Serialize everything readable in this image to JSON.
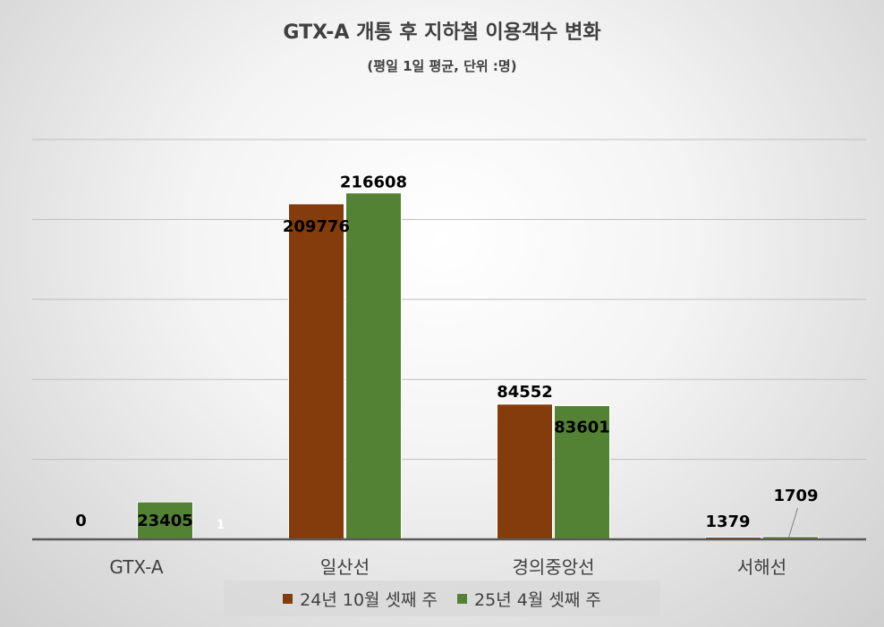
{
  "colors": {
    "series_1": "#843C0C",
    "series_2": "#548235",
    "gridline": "#bfbfbf",
    "axis": "#595959",
    "label_text": "#000000",
    "category_text": "#404040"
  },
  "chart_data": {
    "type": "bar",
    "title": "GTX-A 개통 후 지하철  이용객수 변화",
    "subtitle": "(평일 1일 평균, 단위 :명)",
    "categories": [
      "GTX-A",
      "일산선",
      "경의중앙선",
      "서해선"
    ],
    "series": [
      {
        "name": "24년 10월 셋째 주",
        "values": [
          0,
          209776,
          84552,
          1379
        ]
      },
      {
        "name": "25년 4월 셋째 주",
        "values": [
          23405,
          216608,
          83601,
          1709
        ]
      }
    ],
    "data_labels": {
      "series_1": [
        "0",
        "209776",
        "84552",
        "1379"
      ],
      "series_2": [
        "23405",
        "216608",
        "83601",
        "1709"
      ]
    },
    "extra_annotation": "1",
    "ylim": [
      0,
      250000
    ],
    "grid": true,
    "legend_position": "bottom",
    "xlabel": "",
    "ylabel": ""
  }
}
